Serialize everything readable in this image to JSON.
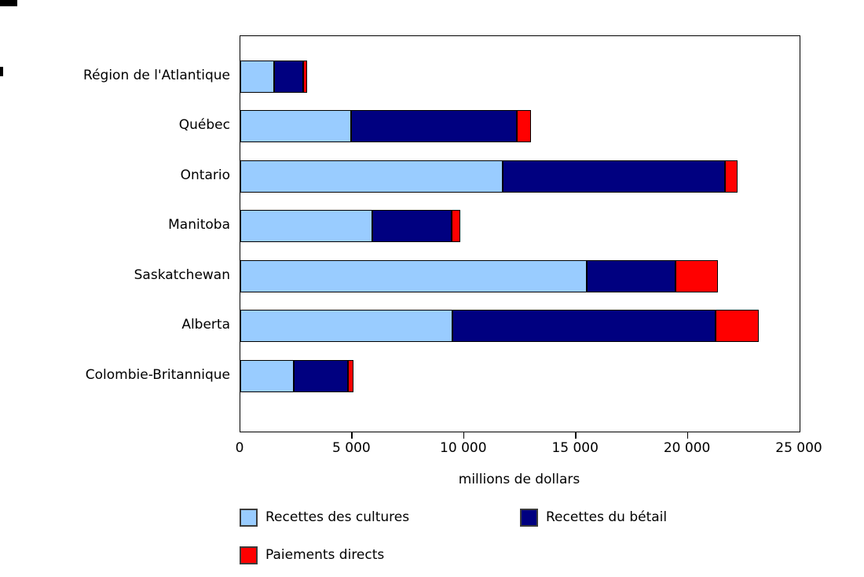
{
  "chart_data": {
    "type": "bar",
    "orientation": "horizontal",
    "stacked": true,
    "title": "",
    "xlabel": "millions de dollars",
    "ylabel": "",
    "xlim": [
      0,
      25000
    ],
    "grid": false,
    "legend_position": "bottom",
    "categories": [
      "Région de l'Atlantique",
      "Québec",
      "Ontario",
      "Manitoba",
      "Saskatchewan",
      "Alberta",
      "Colombie-Britannique"
    ],
    "series": [
      {
        "name": "Recettes des cultures",
        "color": "#99CCFF",
        "values": [
          1520,
          4950,
          11710,
          5910,
          15500,
          9490,
          2400
        ]
      },
      {
        "name": "Recettes du bétail",
        "color": "#000080",
        "values": [
          1280,
          7410,
          9960,
          3520,
          3940,
          11770,
          2400
        ]
      },
      {
        "name": "Paiements directs",
        "color": "#FF0000",
        "values": [
          180,
          640,
          550,
          410,
          1910,
          1930,
          240
        ]
      }
    ],
    "xticks": [
      0,
      5000,
      10000,
      15000,
      20000,
      25000
    ],
    "xtick_labels": [
      "0",
      "5 000",
      "10 000",
      "15 000",
      "20 000",
      "25 000"
    ]
  }
}
